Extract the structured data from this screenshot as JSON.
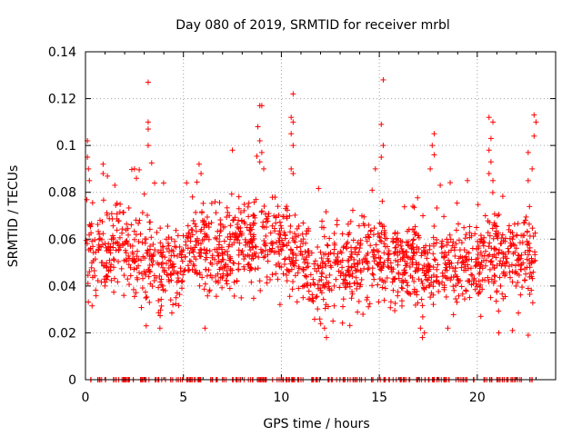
{
  "chart_data": {
    "type": "scatter",
    "title": "Day 080 of 2019, SRMTID for receiver mrbl",
    "xlabel": "GPS time / hours",
    "ylabel": "SRMTID / TECUs",
    "xlim": [
      0,
      24
    ],
    "ylim": [
      0,
      0.14
    ],
    "xticks": [
      0,
      5,
      10,
      15,
      20
    ],
    "xtick_labels": [
      "0",
      "5",
      "10",
      "15",
      "20"
    ],
    "yticks": [
      0,
      0.02,
      0.04,
      0.06,
      0.08,
      0.1,
      0.12,
      0.14
    ],
    "ytick_labels": [
      "0",
      "0.02",
      "0.04",
      "0.06",
      "0.08",
      "0.1",
      "0.12",
      "0.14"
    ],
    "grid": true,
    "marker": "+",
    "color": "#ff0000",
    "band_profile": {
      "hours": [
        0,
        1,
        2,
        3,
        4,
        5,
        6,
        7,
        8,
        9,
        10,
        11,
        12,
        13,
        14,
        15,
        16,
        17,
        18,
        19,
        20,
        21,
        22,
        23
      ],
      "center": [
        0.055,
        0.052,
        0.058,
        0.05,
        0.048,
        0.05,
        0.053,
        0.056,
        0.058,
        0.06,
        0.057,
        0.052,
        0.045,
        0.047,
        0.05,
        0.052,
        0.05,
        0.048,
        0.046,
        0.049,
        0.05,
        0.052,
        0.053,
        0.054
      ],
      "spread": 0.02
    },
    "highlights": [
      {
        "x": 0.1,
        "y": 0.102
      },
      {
        "x": 0.1,
        "y": 0.095
      },
      {
        "x": 0.15,
        "y": 0.09
      },
      {
        "x": 0.2,
        "y": 0.085
      },
      {
        "x": 0.9,
        "y": 0.092
      },
      {
        "x": 0.9,
        "y": 0.088
      },
      {
        "x": 1.5,
        "y": 0.083
      },
      {
        "x": 2.5,
        "y": 0.09
      },
      {
        "x": 2.6,
        "y": 0.086
      },
      {
        "x": 3.2,
        "y": 0.127
      },
      {
        "x": 3.2,
        "y": 0.11
      },
      {
        "x": 3.2,
        "y": 0.107
      },
      {
        "x": 3.2,
        "y": 0.1
      },
      {
        "x": 5.8,
        "y": 0.092
      },
      {
        "x": 5.9,
        "y": 0.088
      },
      {
        "x": 7.5,
        "y": 0.098
      },
      {
        "x": 8.9,
        "y": 0.117
      },
      {
        "x": 9.0,
        "y": 0.117
      },
      {
        "x": 8.8,
        "y": 0.108
      },
      {
        "x": 8.9,
        "y": 0.102
      },
      {
        "x": 9.0,
        "y": 0.097
      },
      {
        "x": 8.9,
        "y": 0.093
      },
      {
        "x": 9.1,
        "y": 0.09
      },
      {
        "x": 10.6,
        "y": 0.122
      },
      {
        "x": 10.5,
        "y": 0.112
      },
      {
        "x": 10.6,
        "y": 0.11
      },
      {
        "x": 10.5,
        "y": 0.105
      },
      {
        "x": 10.6,
        "y": 0.1
      },
      {
        "x": 10.5,
        "y": 0.09
      },
      {
        "x": 10.6,
        "y": 0.088
      },
      {
        "x": 15.2,
        "y": 0.128
      },
      {
        "x": 15.1,
        "y": 0.109
      },
      {
        "x": 15.2,
        "y": 0.1
      },
      {
        "x": 15.1,
        "y": 0.095
      },
      {
        "x": 14.8,
        "y": 0.09
      },
      {
        "x": 17.8,
        "y": 0.105
      },
      {
        "x": 17.7,
        "y": 0.1
      },
      {
        "x": 17.8,
        "y": 0.096
      },
      {
        "x": 17.6,
        "y": 0.09
      },
      {
        "x": 19.5,
        "y": 0.085
      },
      {
        "x": 20.6,
        "y": 0.112
      },
      {
        "x": 20.8,
        "y": 0.11
      },
      {
        "x": 20.7,
        "y": 0.103
      },
      {
        "x": 20.6,
        "y": 0.098
      },
      {
        "x": 20.7,
        "y": 0.093
      },
      {
        "x": 20.6,
        "y": 0.088
      },
      {
        "x": 20.8,
        "y": 0.085
      },
      {
        "x": 22.9,
        "y": 0.113
      },
      {
        "x": 23.0,
        "y": 0.11
      },
      {
        "x": 22.9,
        "y": 0.104
      },
      {
        "x": 22.6,
        "y": 0.097
      },
      {
        "x": 22.8,
        "y": 0.09
      },
      {
        "x": 22.6,
        "y": 0.085
      },
      {
        "x": 3.1,
        "y": 0.023
      },
      {
        "x": 3.8,
        "y": 0.022
      },
      {
        "x": 6.1,
        "y": 0.022
      },
      {
        "x": 12.3,
        "y": 0.018
      },
      {
        "x": 12.2,
        "y": 0.022
      },
      {
        "x": 17.2,
        "y": 0.018
      },
      {
        "x": 17.3,
        "y": 0.02
      },
      {
        "x": 17.1,
        "y": 0.022
      },
      {
        "x": 18.5,
        "y": 0.022
      },
      {
        "x": 21.1,
        "y": 0.02
      },
      {
        "x": 22.6,
        "y": 0.019
      },
      {
        "x": 21.8,
        "y": 0.021
      }
    ],
    "zero_points_note": "a dense row of points lies on y = 0 across the full time range"
  }
}
